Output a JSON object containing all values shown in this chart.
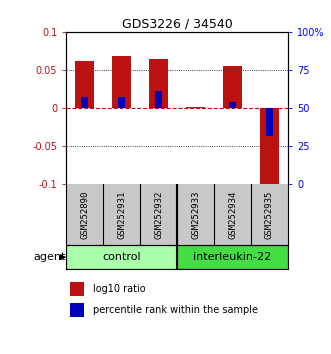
{
  "title": "GDS3226 / 34540",
  "samples": [
    "GSM252890",
    "GSM252931",
    "GSM252932",
    "GSM252933",
    "GSM252934",
    "GSM252935"
  ],
  "log10_ratio": [
    0.062,
    0.068,
    0.065,
    0.001,
    0.055,
    -0.1
  ],
  "percentile_rank_scaled": [
    0.015,
    0.015,
    0.023,
    0.0,
    0.008,
    -0.037
  ],
  "ylim": [
    -0.1,
    0.1
  ],
  "yticks": [
    -0.1,
    -0.05,
    0.0,
    0.05,
    0.1
  ],
  "ytick_labels_left": [
    "-0.1",
    "-0.05",
    "0",
    "0.05",
    "0.1"
  ],
  "ytick_labels_right": [
    "0",
    "25",
    "50",
    "75",
    "100%"
  ],
  "control_color": "#AAFFAA",
  "interleukin_color": "#44DD44",
  "bar_width": 0.5,
  "blue_bar_width": 0.18,
  "red_color": "#BB1111",
  "blue_color": "#0000BB",
  "bg_color": "#FFFFFF",
  "sample_box_color": "#C8C8C8",
  "label_fontsize": 6.5,
  "title_fontsize": 9,
  "tick_fontsize": 7,
  "legend_fontsize": 7,
  "group_fontsize": 8
}
